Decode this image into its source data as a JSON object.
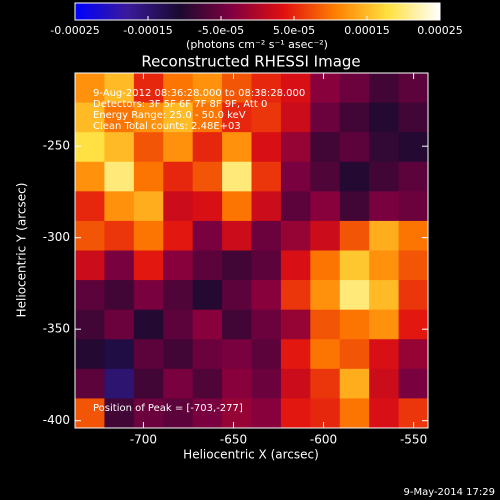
{
  "chart_data": {
    "type": "image",
    "title": "Reconstructed RHESSI Image",
    "xlabel": "Heliocentric X (arcsec)",
    "ylabel": "Heliocentric Y (arcsec)",
    "xlim": [
      -738,
      -542
    ],
    "ylim": [
      -404,
      -210
    ],
    "xticks": [
      -700,
      -650,
      -600,
      -550
    ],
    "yticks": [
      -250,
      -300,
      -350,
      -400
    ],
    "clim": [
      -0.00025,
      0.00025
    ],
    "colorbar_label": "(photons cm⁻² s⁻¹ asec⁻²)",
    "colorbar_ticks": [
      -0.00025,
      -0.00015,
      {
        "value": -5e-05,
        "label": "-5.0e-05"
      },
      {
        "value": 5e-05,
        "label": "5.0e-05"
      },
      0.00015,
      0.00025
    ],
    "colormap": [
      "#0000ff",
      "#3a1a9a",
      "#1a0a30",
      "#800040",
      "#e01010",
      "#ff8000",
      "#ffe040",
      "#ffffff"
    ],
    "annotations": [
      "9-Aug-2012 08:36:28.000 to 08:38:28.000",
      "Detectors: 3F 5F 6F 7F 8F 9F, Att 0",
      "Energy Range: 25.0 - 50.0 keV",
      "Clean    Total counts: 2.48E+03"
    ],
    "peak_label": "Position of Peak = [-703,-277]",
    "timestamp": "9-May-2014 17:29",
    "z": [
      [
        0.00012,
        0.00015,
        5e-05,
        0.0001,
        0.00012,
        8e-05,
        5e-05,
        3e-05,
        -3e-05,
        -5e-05,
        -8e-05,
        -6e-05
      ],
      [
        0.00015,
        0.0001,
        0.00012,
        0.00015,
        0.0001,
        5e-05,
        6e-05,
        2e-05,
        -5e-05,
        -8e-05,
        -0.0001,
        -8e-05
      ],
      [
        0.00018,
        0.00015,
        8e-05,
        0.00012,
        5e-05,
        0.00012,
        3e-05,
        -2e-05,
        -8e-05,
        -6e-05,
        -9e-05,
        -0.0001
      ],
      [
        0.00012,
        0.0002,
        0.0001,
        5e-05,
        8e-05,
        0.0002,
        6e-05,
        -4e-05,
        -7e-05,
        -0.0001,
        -8e-05,
        -6e-05
      ],
      [
        5e-05,
        0.00012,
        0.00014,
        2e-05,
        3e-05,
        0.0001,
        2e-05,
        -6e-05,
        -3e-05,
        -8e-05,
        -4e-05,
        -5e-05
      ],
      [
        8e-05,
        6e-05,
        0.0001,
        4e-05,
        -4e-05,
        2e-05,
        -5e-05,
        -2e-05,
        2e-05,
        8e-05,
        0.00014,
        0.0001
      ],
      [
        2e-05,
        -4e-05,
        4e-05,
        -3e-05,
        -6e-05,
        -8e-05,
        -6e-05,
        3e-05,
        0.0001,
        0.00016,
        0.00012,
        8e-05
      ],
      [
        -6e-05,
        -8e-05,
        -4e-05,
        -7e-05,
        -0.0001,
        -6e-05,
        -3e-05,
        6e-05,
        0.00012,
        0.0002,
        0.00015,
        6e-05
      ],
      [
        -8e-05,
        -5e-05,
        -0.0001,
        -6e-05,
        -3e-05,
        -8e-05,
        -5e-05,
        -2e-05,
        8e-05,
        0.0001,
        0.00012,
        4e-05
      ],
      [
        -0.0001,
        -0.00012,
        -6e-05,
        -8e-05,
        -5e-05,
        -4e-05,
        -6e-05,
        4e-05,
        0.0001,
        8e-05,
        3e-05,
        -2e-05
      ],
      [
        -6e-05,
        -0.00015,
        -8e-05,
        -4e-05,
        -7e-05,
        -3e-05,
        -5e-05,
        2e-05,
        6e-05,
        0.00014,
        2e-05,
        -4e-05
      ],
      [
        8e-05,
        -8e-05,
        -5e-05,
        -6e-05,
        -4e-05,
        -2e-05,
        -3e-05,
        4e-05,
        5e-05,
        0.0001,
        3e-05,
        6e-05
      ]
    ]
  }
}
